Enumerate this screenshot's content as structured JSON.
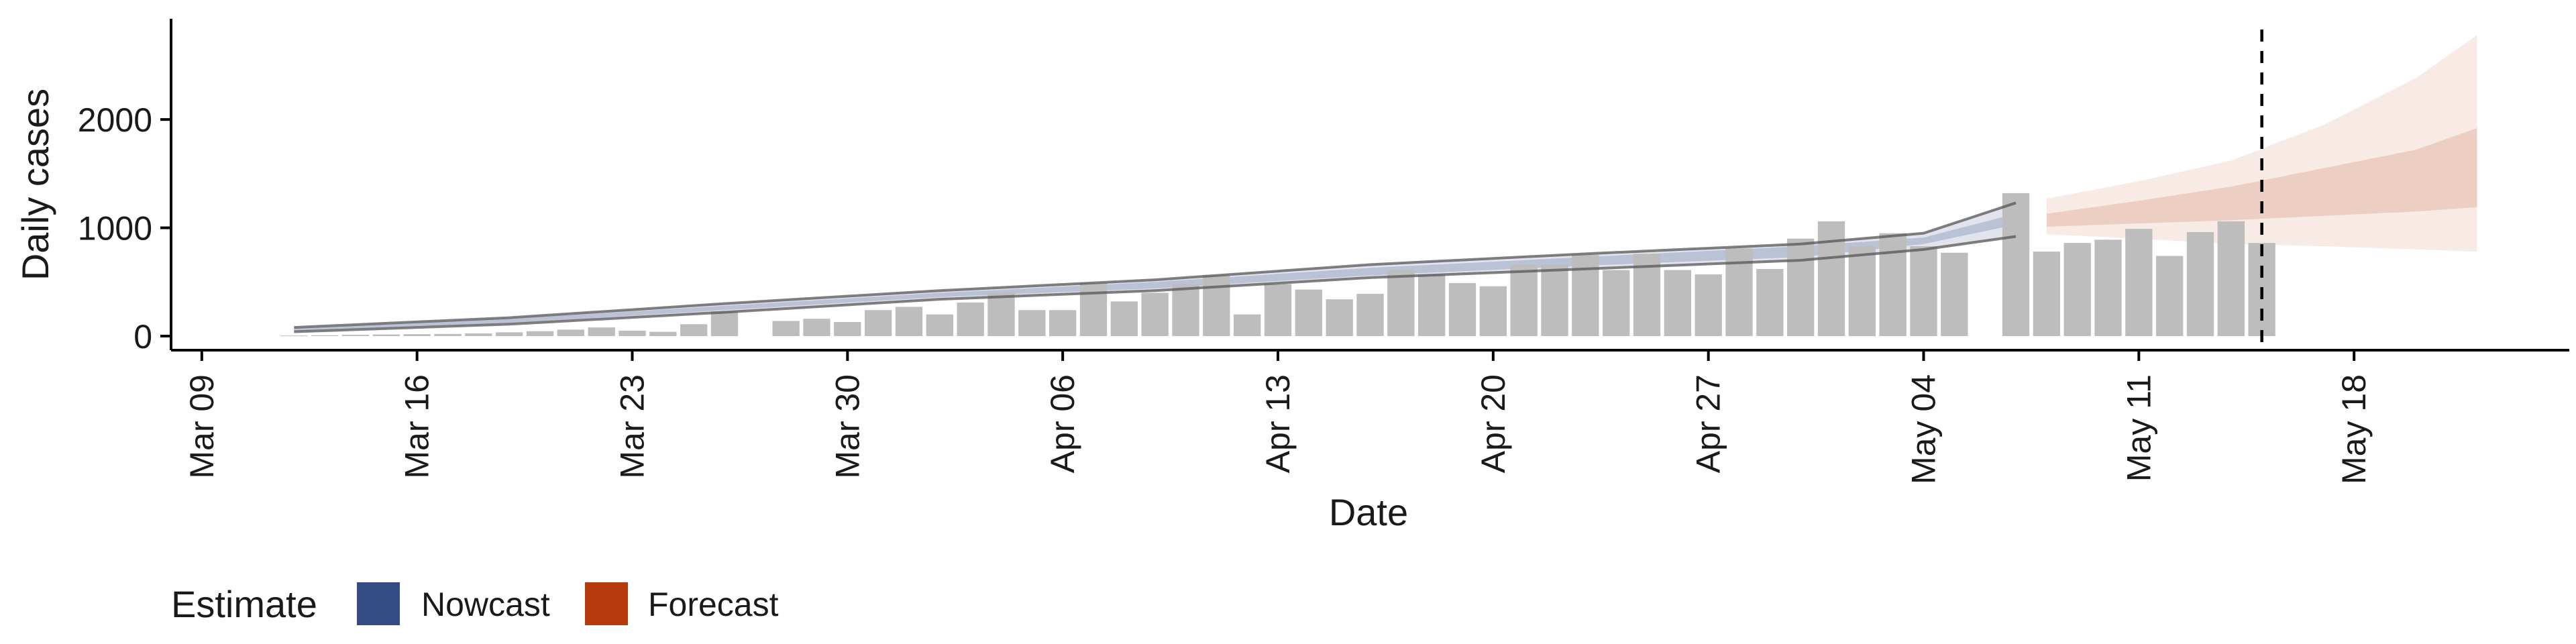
{
  "chart_data": {
    "type": "bar",
    "xlabel": "Date",
    "ylabel": "Daily cases",
    "x_ticks": [
      "Mar 09",
      "Mar 16",
      "Mar 23",
      "Mar 30",
      "Apr 06",
      "Apr 13",
      "Apr 20",
      "Apr 27",
      "May 04",
      "May 11",
      "May 18"
    ],
    "x_tick_dates": [
      "2020-03-09",
      "2020-03-16",
      "2020-03-23",
      "2020-03-30",
      "2020-04-06",
      "2020-04-13",
      "2020-04-20",
      "2020-04-27",
      "2020-05-04",
      "2020-05-11",
      "2020-05-18"
    ],
    "y_ticks": [
      0,
      1000,
      2000
    ],
    "xlim": [
      "2020-03-08",
      "2020-05-25"
    ],
    "ylim": [
      -130,
      2930
    ],
    "grid": false,
    "legend": {
      "title": "Estimate",
      "position": "bottom-left",
      "entries": [
        {
          "label": "Nowcast",
          "color": "#344b84"
        },
        {
          "label": "Forecast",
          "color": "#b63a0b"
        }
      ]
    },
    "reference_line": {
      "date": "2020-05-15",
      "style": "dashed",
      "color": "#000000"
    },
    "bar_color": "#bdbdbd",
    "series": [
      {
        "kind": "bars",
        "start_date": "2020-03-12",
        "values": [
          5,
          8,
          12,
          15,
          18,
          20,
          25,
          35,
          45,
          60,
          80,
          50,
          40,
          110,
          230,
          null,
          140,
          160,
          130,
          240,
          270,
          200,
          310,
          400,
          240,
          240,
          490,
          320,
          400,
          480,
          560,
          200,
          480,
          430,
          340,
          390,
          610,
          570,
          490,
          460,
          660,
          660,
          750,
          610,
          760,
          610,
          570,
          810,
          620,
          900,
          1060,
          830,
          950,
          830,
          770,
          null,
          1320,
          780,
          860,
          890,
          990,
          740,
          960,
          1060,
          860
        ]
      },
      {
        "kind": "band",
        "name": "Nowcast",
        "color": "#344b84",
        "dates": [
          "2020-03-12",
          "2020-03-19",
          "2020-03-26",
          "2020-04-02",
          "2020-04-09",
          "2020-04-16",
          "2020-04-23",
          "2020-04-30",
          "2020-05-04",
          "2020-05-07"
        ],
        "upper": [
          80,
          170,
          300,
          420,
          520,
          660,
          760,
          850,
          950,
          1230
        ],
        "lower": [
          40,
          110,
          220,
          340,
          420,
          540,
          620,
          700,
          800,
          920
        ],
        "inner_upper": [
          70,
          160,
          280,
          400,
          500,
          630,
          730,
          830,
          910,
          1130
        ],
        "inner_lower": [
          50,
          120,
          240,
          360,
          440,
          560,
          650,
          730,
          850,
          1030
        ]
      },
      {
        "kind": "band",
        "name": "Forecast",
        "color": "#b63a0b",
        "dates": [
          "2020-05-08",
          "2020-05-11",
          "2020-05-14",
          "2020-05-17",
          "2020-05-20",
          "2020-05-22"
        ],
        "upper": [
          1270,
          1430,
          1620,
          1950,
          2380,
          2780
        ],
        "lower": [
          940,
          900,
          850,
          830,
          800,
          780
        ],
        "inner_upper": [
          1130,
          1250,
          1380,
          1550,
          1720,
          1920
        ],
        "inner_lower": [
          1010,
          1040,
          1070,
          1110,
          1150,
          1190
        ]
      }
    ]
  }
}
